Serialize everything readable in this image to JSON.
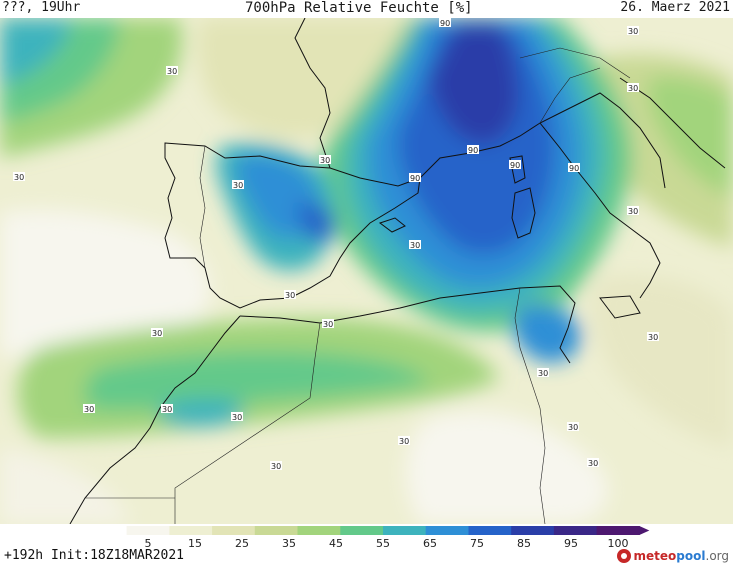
{
  "header": {
    "left": "???, 19Uhr",
    "title": "700hPa Relative Feuchte [%]",
    "date": "26. Maerz 2021"
  },
  "footer": {
    "forecast": "+192h  Init:18Z18MAR2021"
  },
  "brand": {
    "part1": "meteo",
    "part2": "pool",
    "part3": ".org"
  },
  "legend": {
    "ticks": [
      "5",
      "15",
      "25",
      "35",
      "45",
      "55",
      "65",
      "75",
      "85",
      "95",
      "100"
    ],
    "colors": [
      "#f7f6ee",
      "#eeefd2",
      "#e2e4b6",
      "#c9d995",
      "#a2d47c",
      "#63c98a",
      "#3db3bd",
      "#2e8fd6",
      "#2563c9",
      "#2a3ea8",
      "#3a2787",
      "#4d1870"
    ]
  },
  "isolines": {
    "label_30": "30",
    "label_90": "90"
  }
}
